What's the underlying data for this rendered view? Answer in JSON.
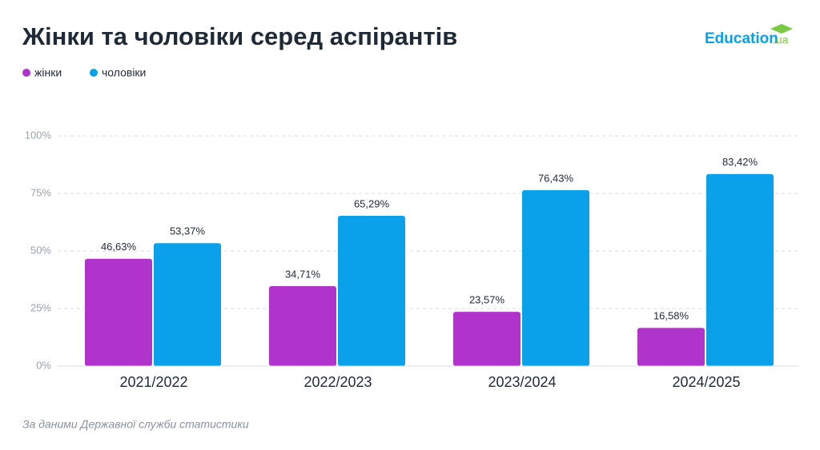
{
  "chart_data": {
    "type": "bar",
    "title": "Жінки та чоловіки серед аспірантів",
    "categories": [
      "2021/2022",
      "2022/2023",
      "2023/2024",
      "2024/2025"
    ],
    "series": [
      {
        "name": "жінки",
        "color": "#b033cc",
        "values": [
          46.63,
          34.71,
          23.57,
          16.58
        ],
        "value_labels": [
          "46,63%",
          "34,71%",
          "23,57%",
          "16,58%"
        ]
      },
      {
        "name": "чоловіки",
        "color": "#0aa0ea",
        "values": [
          53.37,
          65.29,
          76.43,
          83.42
        ],
        "value_labels": [
          "53,37%",
          "65,29%",
          "76,43%",
          "83,42%"
        ]
      }
    ],
    "ylim": [
      0,
      100
    ],
    "yticks": [
      {
        "value": 0,
        "label": "0%"
      },
      {
        "value": 25,
        "label": "25%"
      },
      {
        "value": 50,
        "label": "50%"
      },
      {
        "value": 75,
        "label": "75%"
      },
      {
        "value": 100,
        "label": "100%"
      }
    ],
    "grid": true,
    "legend": "top-left"
  },
  "source": "За даними Державної служби статистики",
  "logo": {
    "text": "Education",
    "suffix": ".ua"
  }
}
